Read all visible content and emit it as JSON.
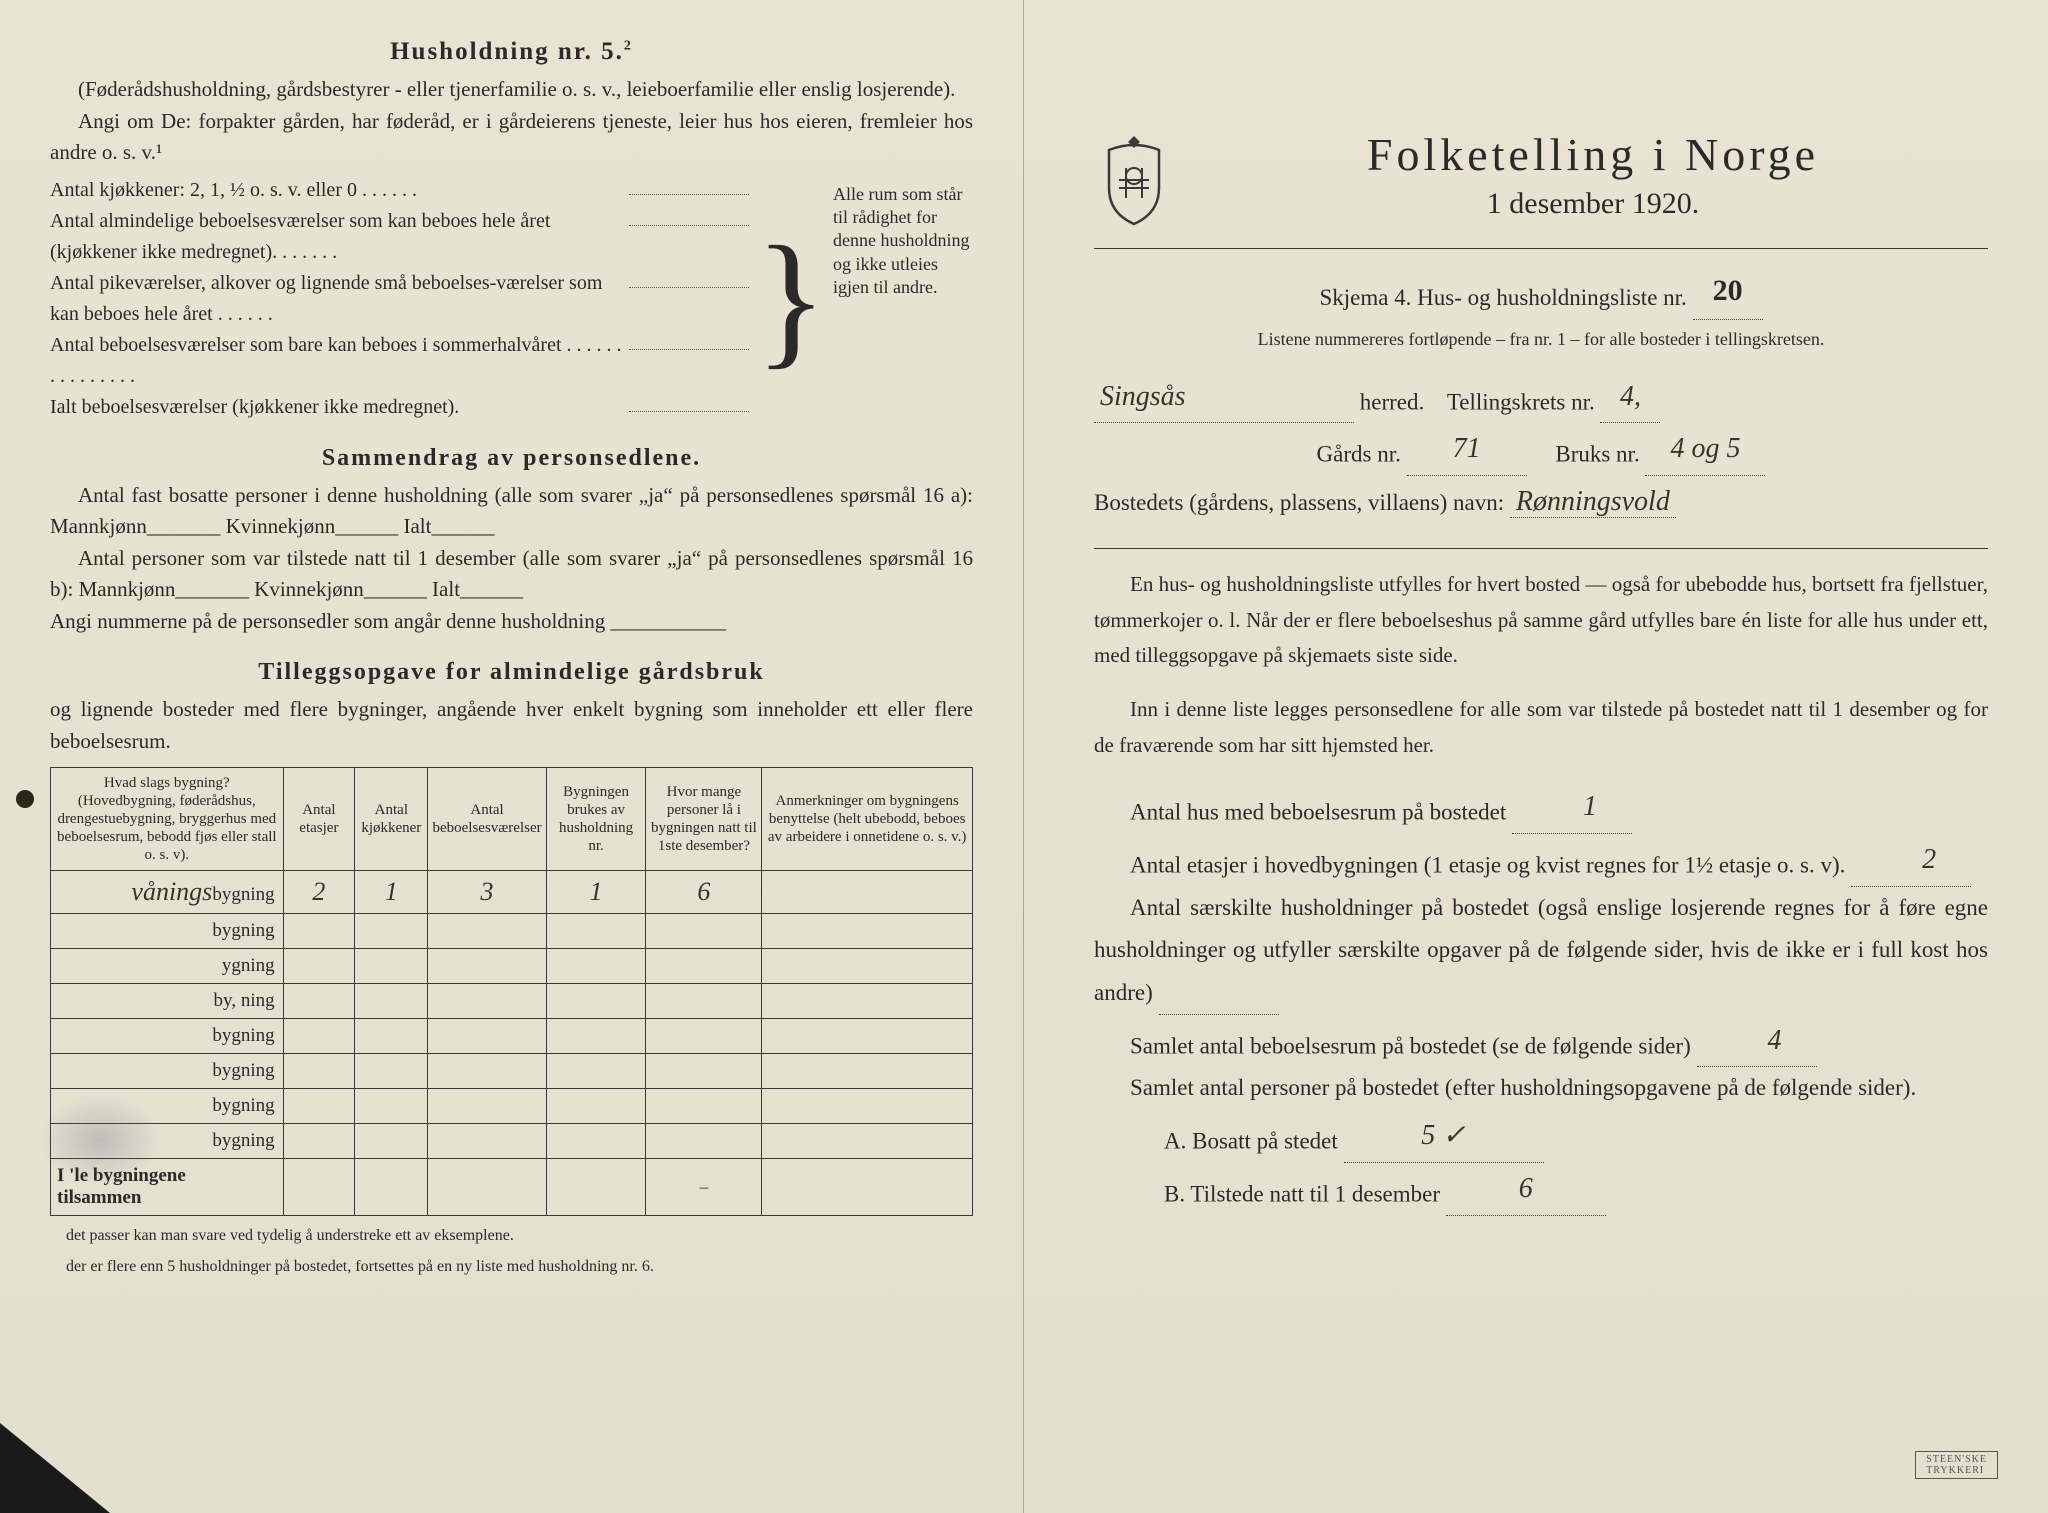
{
  "left": {
    "household_heading": "Husholdning nr. 5.",
    "household_sup": "2",
    "intro_para": "(Føderådshusholdning, gårdsbestyrer - eller tjenerfamilie o. s. v., leieboerfamilie eller enslig losjerende).",
    "angi_line": "Angi om De: forpakter gården, har føderåd, er i gårdeierens tjeneste, leier hus hos eieren, fremleier hos andre o. s. v.¹",
    "brace_lines": [
      "Antal kjøkkener: 2, 1, ½ o. s. v. eller 0 . . . . . .",
      "Antal almindelige beboelsesværelser som kan beboes hele året (kjøkkener ikke medregnet). . . . . . .",
      "Antal pikeværelser, alkover og lignende små beboelses-værelser som kan beboes hele året . . . . . .",
      "Antal beboelsesværelser som bare kan beboes i sommerhalvåret . . . . . . . . . . . . . . .",
      "Ialt beboelsesværelser (kjøkkener ikke medregnet)."
    ],
    "brace_right": "Alle rum som står til rådighet for denne husholdning og ikke utleies igjen til andre.",
    "summary_head": "Sammendrag av personsedlene.",
    "summary_p1": "Antal fast bosatte personer i denne husholdning (alle som svarer „ja“ på personsedlenes spørsmål 16 a): Mannkjønn_______ Kvinnekjønn______ Ialt______",
    "summary_p2": "Antal personer som var tilstede natt til 1 desember (alle som svarer „ja“ på personsedlenes spørsmål 16 b): Mannkjønn_______ Kvinnekjønn______ Ialt______",
    "summary_p3": "Angi nummerne på de personsedler som angår denne husholdning ___________",
    "tillegg_head": "Tilleggsopgave for almindelige gårdsbruk",
    "tillegg_sub": "og lignende bosteder med flere bygninger, angående hver enkelt bygning som inneholder ett eller flere beboelsesrum.",
    "table": {
      "headers": [
        "Hvad slags bygning?\n(Hovedbygning, føderådshus, drengestuebygning, bryggerhus med beboelsesrum, bebodd fjøs eller stall o. s. v).",
        "Antal etasjer",
        "Antal kjøkkener",
        "Antal beboelsesværelser",
        "Bygningen brukes av husholdning nr.",
        "Hvor mange personer lå i bygningen natt til 1ste desember?",
        "Anmerkninger om bygningens benyttelse (helt ubebodd, beboes av arbeidere i onnetidene o. s. v.)"
      ],
      "rows": [
        {
          "type_hw": "vånings",
          "suffix": "bygning",
          "cells": [
            "2",
            "1",
            "3",
            "1",
            "6",
            ""
          ]
        },
        {
          "type_hw": "",
          "suffix": "bygning",
          "cells": [
            "",
            "",
            "",
            "",
            "",
            ""
          ]
        },
        {
          "type_hw": "",
          "suffix": "ygning",
          "cells": [
            "",
            "",
            "",
            "",
            "",
            ""
          ]
        },
        {
          "type_hw": "",
          "suffix": "by, ning",
          "cells": [
            "",
            "",
            "",
            "",
            "",
            ""
          ]
        },
        {
          "type_hw": "",
          "suffix": "bygning",
          "cells": [
            "",
            "",
            "",
            "",
            "",
            ""
          ]
        },
        {
          "type_hw": "",
          "suffix": "bygning",
          "cells": [
            "",
            "",
            "",
            "",
            "",
            ""
          ]
        },
        {
          "type_hw": "",
          "suffix": "bygning",
          "cells": [
            "",
            "",
            "",
            "",
            "",
            ""
          ]
        },
        {
          "type_hw": "",
          "suffix": "bygning",
          "cells": [
            "",
            "",
            "",
            "",
            "",
            ""
          ]
        }
      ],
      "total_label": "I  'le bygningene tilsammen",
      "total_cells": [
        "",
        "",
        "",
        "",
        "–",
        ""
      ]
    },
    "footnote1": "det passer kan man svare ved tydelig å understreke ett av eksemplene.",
    "footnote2": "der er flere enn 5 husholdninger på bostedet, fortsettes på en ny liste med husholdning nr. 6."
  },
  "right": {
    "title": "Folketelling i Norge",
    "date": "1 desember 1920.",
    "skjema_label": "Skjema 4.  Hus- og husholdningsliste nr.",
    "skjema_nr": "20",
    "subnote": "Listene nummereres fortløpende – fra nr. 1 – for alle bosteder i tellingskretsen.",
    "herred_hw": "Singsås",
    "herred_lbl": "herred.",
    "krets_lbl": "Tellingskrets nr.",
    "krets_hw": "4,",
    "gard_lbl": "Gårds nr.",
    "gard_hw": "71",
    "bruk_lbl": "Bruks nr.",
    "bruk_hw": "4 og 5",
    "bosted_lbl": "Bostedets (gårdens, plassens, villaens) navn:",
    "bosted_hw": "Rønningsvold",
    "para1": "En hus- og husholdningsliste utfylles for hvert bosted — også for ubebodde hus, bortsett fra fjellstuer, tømmerkojer o. l.  Når der er flere beboelseshus på samme gård utfylles bare én liste for alle hus under ett, med tilleggsopgave på skjemaets siste side.",
    "para2": "Inn i denne liste legges personsedlene for alle som var tilstede på bostedet natt til 1 desember og for de fraværende som har sitt hjemsted her.",
    "q1_lbl": "Antal hus med beboelsesrum på bostedet",
    "q1_hw": "1",
    "q2_lbl": "Antal etasjer i hovedbygningen (1 etasje og kvist regnes for 1½ etasje o. s. v).",
    "q2_hw": "2",
    "q3_lbl": "Antal særskilte husholdninger på bostedet (også enslige losjerende regnes for å føre egne husholdninger og utfyller særskilte opgaver på de følgende sider, hvis de ikke er i full kost hos andre)",
    "q3_hw": "",
    "q4_lbl": "Samlet antal beboelsesrum på bostedet (se de følgende sider)",
    "q4_hw": "4",
    "q5_lbl": "Samlet antal personer på bostedet (efter husholdningsopgavene på de følgende sider).",
    "qA_lbl": "A.  Bosatt på stedet",
    "qA_hw": "5  ✓",
    "qB_lbl": "B.  Tilstede natt til 1 desember",
    "qB_hw": "6"
  },
  "colors": {
    "paper": "#e4dfce",
    "ink": "#2a2a2a",
    "hw": "#3a3428"
  }
}
